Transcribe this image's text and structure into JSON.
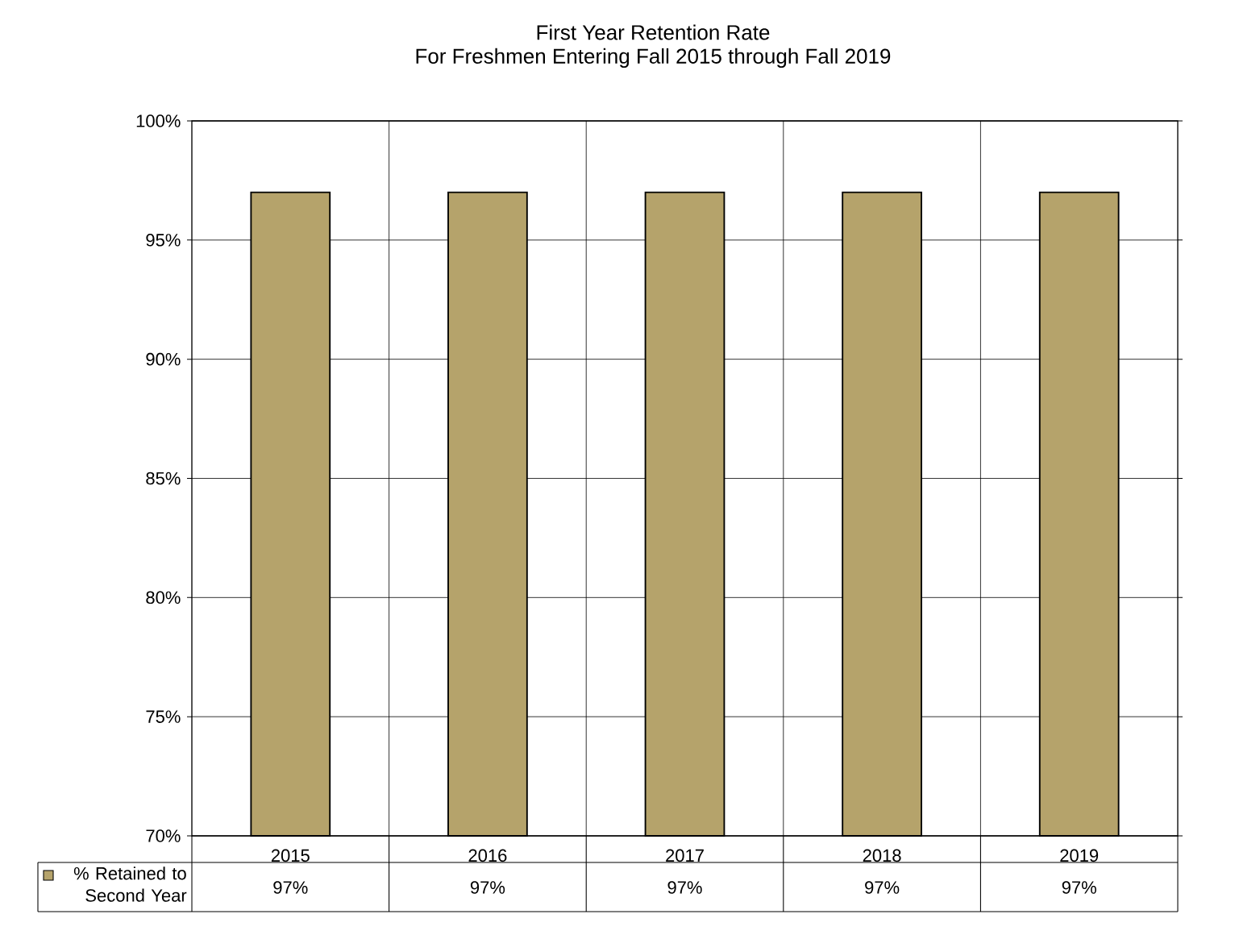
{
  "chart_data": {
    "type": "bar",
    "title": "First Year Retention Rate",
    "subtitle": "For Freshmen Entering Fall 2015 through Fall 2019",
    "categories": [
      "2015",
      "2016",
      "2017",
      "2018",
      "2019"
    ],
    "series": [
      {
        "name": "% Retained to Second Year",
        "color": "#b5a36b",
        "values": [
          97,
          97,
          97,
          97,
          97
        ],
        "value_labels": [
          "97%",
          "97%",
          "97%",
          "97%",
          "97%"
        ]
      }
    ],
    "ylim": [
      70,
      100
    ],
    "yticks": [
      {
        "value": 70,
        "label": "70%"
      },
      {
        "value": 75,
        "label": "75%"
      },
      {
        "value": 80,
        "label": "80%"
      },
      {
        "value": 85,
        "label": "85%"
      },
      {
        "value": 90,
        "label": "90%"
      },
      {
        "value": 95,
        "label": "95%"
      },
      {
        "value": 100,
        "label": "100%"
      }
    ],
    "grid": true,
    "legend": "bottom left"
  }
}
